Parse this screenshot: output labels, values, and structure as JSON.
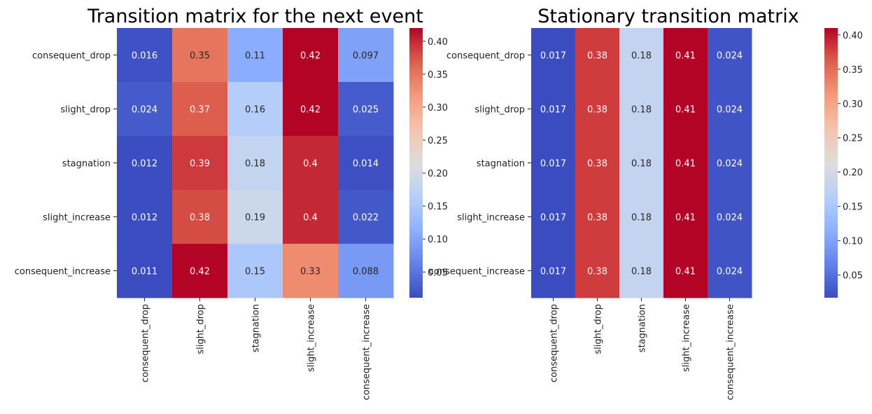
{
  "chart_data": [
    {
      "type": "heatmap",
      "title": "Transition matrix for the next event",
      "row_labels": [
        "consequent_drop",
        "slight_drop",
        "stagnation",
        "slight_increase",
        "consequent_increase"
      ],
      "col_labels": [
        "consequent_drop",
        "slight_drop",
        "stagnation",
        "slight_increase",
        "consequent_increase"
      ],
      "values": [
        [
          0.016,
          0.35,
          0.11,
          0.42,
          0.097
        ],
        [
          0.024,
          0.37,
          0.16,
          0.42,
          0.025
        ],
        [
          0.012,
          0.39,
          0.18,
          0.4,
          0.014
        ],
        [
          0.012,
          0.38,
          0.19,
          0.4,
          0.022
        ],
        [
          0.011,
          0.42,
          0.15,
          0.33,
          0.088
        ]
      ],
      "value_labels": [
        [
          "0.016",
          "0.35",
          "0.11",
          "0.42",
          "0.097"
        ],
        [
          "0.024",
          "0.37",
          "0.16",
          "0.42",
          "0.025"
        ],
        [
          "0.012",
          "0.39",
          "0.18",
          "0.4",
          "0.014"
        ],
        [
          "0.012",
          "0.38",
          "0.19",
          "0.4",
          "0.022"
        ],
        [
          "0.011",
          "0.42",
          "0.15",
          "0.33",
          "0.088"
        ]
      ],
      "colormap": "coolwarm",
      "vmin": 0.011,
      "vmax": 0.42,
      "colorbar_ticks": [
        "0.05",
        "0.10",
        "0.15",
        "0.20",
        "0.25",
        "0.30",
        "0.35",
        "0.40"
      ]
    },
    {
      "type": "heatmap",
      "title": "Stationary transition matrix",
      "row_labels": [
        "consequent_drop",
        "slight_drop",
        "stagnation",
        "slight_increase",
        "consequent_increase"
      ],
      "col_labels": [
        "consequent_drop",
        "slight_drop",
        "stagnation",
        "slight_increase",
        "consequent_increase"
      ],
      "values": [
        [
          0.017,
          0.38,
          0.18,
          0.41,
          0.024
        ],
        [
          0.017,
          0.38,
          0.18,
          0.41,
          0.024
        ],
        [
          0.017,
          0.38,
          0.18,
          0.41,
          0.024
        ],
        [
          0.017,
          0.38,
          0.18,
          0.41,
          0.024
        ],
        [
          0.017,
          0.38,
          0.18,
          0.41,
          0.024
        ]
      ],
      "value_labels": [
        [
          "0.017",
          "0.38",
          "0.18",
          "0.41",
          "0.024"
        ],
        [
          "0.017",
          "0.38",
          "0.18",
          "0.41",
          "0.024"
        ],
        [
          "0.017",
          "0.38",
          "0.18",
          "0.41",
          "0.024"
        ],
        [
          "0.017",
          "0.38",
          "0.18",
          "0.41",
          "0.024"
        ],
        [
          "0.017",
          "0.38",
          "0.18",
          "0.41",
          "0.024"
        ]
      ],
      "colormap": "coolwarm",
      "vmin": 0.017,
      "vmax": 0.41,
      "colorbar_ticks": [
        "0.05",
        "0.10",
        "0.15",
        "0.20",
        "0.25",
        "0.30",
        "0.35",
        "0.40"
      ]
    }
  ]
}
